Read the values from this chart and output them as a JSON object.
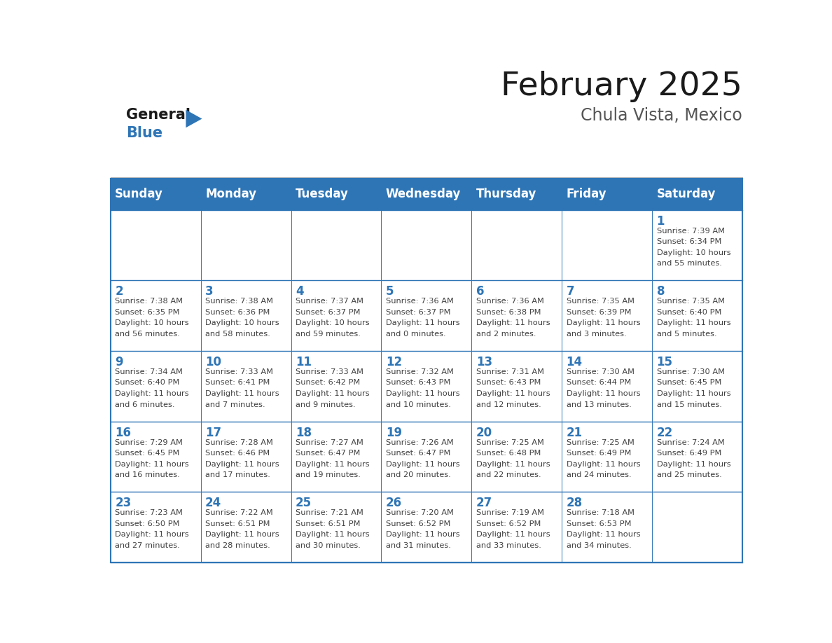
{
  "title": "February 2025",
  "subtitle": "Chula Vista, Mexico",
  "days_of_week": [
    "Sunday",
    "Monday",
    "Tuesday",
    "Wednesday",
    "Thursday",
    "Friday",
    "Saturday"
  ],
  "header_bg": "#2E75B6",
  "header_text": "#FFFFFF",
  "cell_bg": "#FFFFFF",
  "border_color": "#2E75B6",
  "day_num_color": "#2E75B6",
  "info_color": "#404040",
  "title_color": "#1a1a1a",
  "subtitle_color": "#555555",
  "calendar_data": [
    [
      null,
      null,
      null,
      null,
      null,
      null,
      1
    ],
    [
      2,
      3,
      4,
      5,
      6,
      7,
      8
    ],
    [
      9,
      10,
      11,
      12,
      13,
      14,
      15
    ],
    [
      16,
      17,
      18,
      19,
      20,
      21,
      22
    ],
    [
      23,
      24,
      25,
      26,
      27,
      28,
      null
    ]
  ],
  "sunrise_data": {
    "1": "7:39 AM",
    "2": "7:38 AM",
    "3": "7:38 AM",
    "4": "7:37 AM",
    "5": "7:36 AM",
    "6": "7:36 AM",
    "7": "7:35 AM",
    "8": "7:35 AM",
    "9": "7:34 AM",
    "10": "7:33 AM",
    "11": "7:33 AM",
    "12": "7:32 AM",
    "13": "7:31 AM",
    "14": "7:30 AM",
    "15": "7:30 AM",
    "16": "7:29 AM",
    "17": "7:28 AM",
    "18": "7:27 AM",
    "19": "7:26 AM",
    "20": "7:25 AM",
    "21": "7:25 AM",
    "22": "7:24 AM",
    "23": "7:23 AM",
    "24": "7:22 AM",
    "25": "7:21 AM",
    "26": "7:20 AM",
    "27": "7:19 AM",
    "28": "7:18 AM"
  },
  "sunset_data": {
    "1": "6:34 PM",
    "2": "6:35 PM",
    "3": "6:36 PM",
    "4": "6:37 PM",
    "5": "6:37 PM",
    "6": "6:38 PM",
    "7": "6:39 PM",
    "8": "6:40 PM",
    "9": "6:40 PM",
    "10": "6:41 PM",
    "11": "6:42 PM",
    "12": "6:43 PM",
    "13": "6:43 PM",
    "14": "6:44 PM",
    "15": "6:45 PM",
    "16": "6:45 PM",
    "17": "6:46 PM",
    "18": "6:47 PM",
    "19": "6:47 PM",
    "20": "6:48 PM",
    "21": "6:49 PM",
    "22": "6:49 PM",
    "23": "6:50 PM",
    "24": "6:51 PM",
    "25": "6:51 PM",
    "26": "6:52 PM",
    "27": "6:52 PM",
    "28": "6:53 PM"
  },
  "daylight_data": {
    "1": [
      "10 hours",
      "and 55 minutes."
    ],
    "2": [
      "10 hours",
      "and 56 minutes."
    ],
    "3": [
      "10 hours",
      "and 58 minutes."
    ],
    "4": [
      "10 hours",
      "and 59 minutes."
    ],
    "5": [
      "11 hours",
      "and 0 minutes."
    ],
    "6": [
      "11 hours",
      "and 2 minutes."
    ],
    "7": [
      "11 hours",
      "and 3 minutes."
    ],
    "8": [
      "11 hours",
      "and 5 minutes."
    ],
    "9": [
      "11 hours",
      "and 6 minutes."
    ],
    "10": [
      "11 hours",
      "and 7 minutes."
    ],
    "11": [
      "11 hours",
      "and 9 minutes."
    ],
    "12": [
      "11 hours",
      "and 10 minutes."
    ],
    "13": [
      "11 hours",
      "and 12 minutes."
    ],
    "14": [
      "11 hours",
      "and 13 minutes."
    ],
    "15": [
      "11 hours",
      "and 15 minutes."
    ],
    "16": [
      "11 hours",
      "and 16 minutes."
    ],
    "17": [
      "11 hours",
      "and 17 minutes."
    ],
    "18": [
      "11 hours",
      "and 19 minutes."
    ],
    "19": [
      "11 hours",
      "and 20 minutes."
    ],
    "20": [
      "11 hours",
      "and 22 minutes."
    ],
    "21": [
      "11 hours",
      "and 24 minutes."
    ],
    "22": [
      "11 hours",
      "and 25 minutes."
    ],
    "23": [
      "11 hours",
      "and 27 minutes."
    ],
    "24": [
      "11 hours",
      "and 28 minutes."
    ],
    "25": [
      "11 hours",
      "and 30 minutes."
    ],
    "26": [
      "11 hours",
      "and 31 minutes."
    ],
    "27": [
      "11 hours",
      "and 33 minutes."
    ],
    "28": [
      "11 hours",
      "and 34 minutes."
    ]
  },
  "logo_general_color": "#1a1a1a",
  "logo_blue_color": "#2E75B6"
}
